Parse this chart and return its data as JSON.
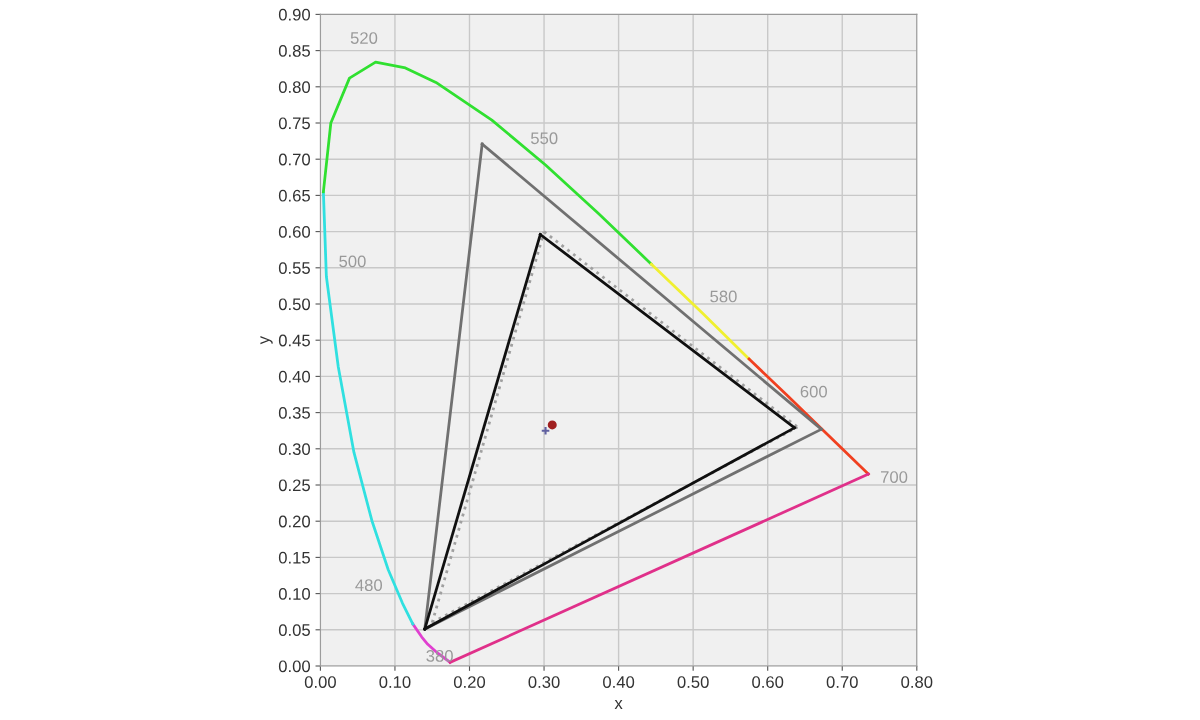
{
  "chart_data": {
    "type": "line",
    "xlabel": "x",
    "ylabel": "y",
    "xlim": [
      0,
      0.8
    ],
    "ylim": [
      0,
      0.9
    ],
    "xticks": [
      {
        "value": 0,
        "label": "0.00"
      },
      {
        "value": 0.1,
        "label": "0.10"
      },
      {
        "value": 0.2,
        "label": "0.20"
      },
      {
        "value": 0.3,
        "label": "0.30"
      },
      {
        "value": 0.4,
        "label": "0.40"
      },
      {
        "value": 0.5,
        "label": "0.50"
      },
      {
        "value": 0.6,
        "label": "0.60"
      },
      {
        "value": 0.7,
        "label": "0.70"
      },
      {
        "value": 0.8,
        "label": "0.80"
      }
    ],
    "yticks": [
      {
        "value": 0,
        "label": "0.00"
      },
      {
        "value": 0.05,
        "label": "0.05"
      },
      {
        "value": 0.1,
        "label": "0.10"
      },
      {
        "value": 0.15,
        "label": "0.15"
      },
      {
        "value": 0.2,
        "label": "0.20"
      },
      {
        "value": 0.25,
        "label": "0.25"
      },
      {
        "value": 0.3,
        "label": "0.30"
      },
      {
        "value": 0.35,
        "label": "0.35"
      },
      {
        "value": 0.4,
        "label": "0.40"
      },
      {
        "value": 0.45,
        "label": "0.45"
      },
      {
        "value": 0.5,
        "label": "0.50"
      },
      {
        "value": 0.55,
        "label": "0.55"
      },
      {
        "value": 0.6,
        "label": "0.60"
      },
      {
        "value": 0.65,
        "label": "0.65"
      },
      {
        "value": 0.7,
        "label": "0.70"
      },
      {
        "value": 0.75,
        "label": "0.75"
      },
      {
        "value": 0.8,
        "label": "0.80"
      },
      {
        "value": 0.85,
        "label": "0.85"
      },
      {
        "value": 0.9,
        "label": "0.90"
      }
    ],
    "grid": true,
    "series": [
      {
        "color": "#e040d0",
        "x": [
          0.174,
          0.157,
          0.144,
          0.136,
          0.124
        ],
        "values": [
          0.005,
          0.018,
          0.03,
          0.04,
          0.058
        ]
      },
      {
        "color": "#30e0e0",
        "x": [
          0.124,
          0.11,
          0.091,
          0.069,
          0.045,
          0.024,
          0.008,
          0.004
        ],
        "values": [
          0.058,
          0.087,
          0.133,
          0.201,
          0.295,
          0.413,
          0.538,
          0.655
        ]
      },
      {
        "color": "#30e030",
        "x": [
          0.004,
          0.014,
          0.039,
          0.074,
          0.114,
          0.155,
          0.23,
          0.302,
          0.373,
          0.444
        ],
        "values": [
          0.655,
          0.75,
          0.812,
          0.834,
          0.826,
          0.806,
          0.754,
          0.692,
          0.625,
          0.555
        ]
      },
      {
        "color": "#f0f030",
        "x": [
          0.444,
          0.513,
          0.575
        ],
        "values": [
          0.555,
          0.487,
          0.424
        ]
      },
      {
        "color": "#f04020",
        "x": [
          0.575,
          0.627,
          0.666,
          0.692,
          0.719,
          0.735
        ],
        "values": [
          0.424,
          0.373,
          0.334,
          0.308,
          0.281,
          0.265
        ]
      },
      {
        "color": "#e0308a",
        "x": [
          0.174,
          0.735
        ],
        "values": [
          0.005,
          0.265
        ]
      },
      {
        "color": "#707070",
        "x": [
          0.14,
          0.217
        ],
        "values": [
          0.051,
          0.721
        ]
      },
      {
        "color": "#707070",
        "x": [
          0.217,
          0.672
        ],
        "values": [
          0.721,
          0.327
        ]
      },
      {
        "color": "#707070",
        "x": [
          0.14,
          0.672
        ],
        "values": [
          0.051,
          0.327
        ]
      },
      {
        "color": "#a0a0a0",
        "line_style": "dotted",
        "x": [
          0.15,
          0.3
        ],
        "values": [
          0.06,
          0.6
        ]
      },
      {
        "color": "#a0a0a0",
        "line_style": "dotted",
        "x": [
          0.3,
          0.64
        ],
        "values": [
          0.6,
          0.33
        ]
      },
      {
        "color": "#a0a0a0",
        "line_style": "dotted",
        "x": [
          0.15,
          0.64
        ],
        "values": [
          0.06,
          0.33
        ]
      },
      {
        "color": "#101010",
        "x": [
          0.14,
          0.295
        ],
        "values": [
          0.051,
          0.596
        ]
      },
      {
        "color": "#101010",
        "x": [
          0.295,
          0.636
        ],
        "values": [
          0.596,
          0.329
        ]
      },
      {
        "color": "#101010",
        "x": [
          0.14,
          0.636
        ],
        "values": [
          0.051,
          0.329
        ]
      },
      {
        "type": "scatter",
        "marker": "cross",
        "color": "#6060a0",
        "x": [
          0.302
        ],
        "values": [
          0.325
        ]
      },
      {
        "type": "scatter",
        "marker": "circle",
        "color": "#a02020",
        "x": [
          0.311
        ],
        "values": [
          0.333
        ]
      }
    ],
    "annotations": [
      {
        "text": "520",
        "x": 0.074,
        "y": 0.834
      },
      {
        "text": "550",
        "x": 0.302,
        "y": 0.692
      },
      {
        "text": "580",
        "x": 0.513,
        "y": 0.487
      },
      {
        "text": "600",
        "x": 0.627,
        "y": 0.373
      },
      {
        "text": "700",
        "x": 0.735,
        "y": 0.265
      },
      {
        "text": "500",
        "x": 0.008,
        "y": 0.538
      },
      {
        "text": "480",
        "x": 0.091,
        "y": 0.133
      },
      {
        "text": "380",
        "x": 0.174,
        "y": 0.005
      }
    ]
  }
}
